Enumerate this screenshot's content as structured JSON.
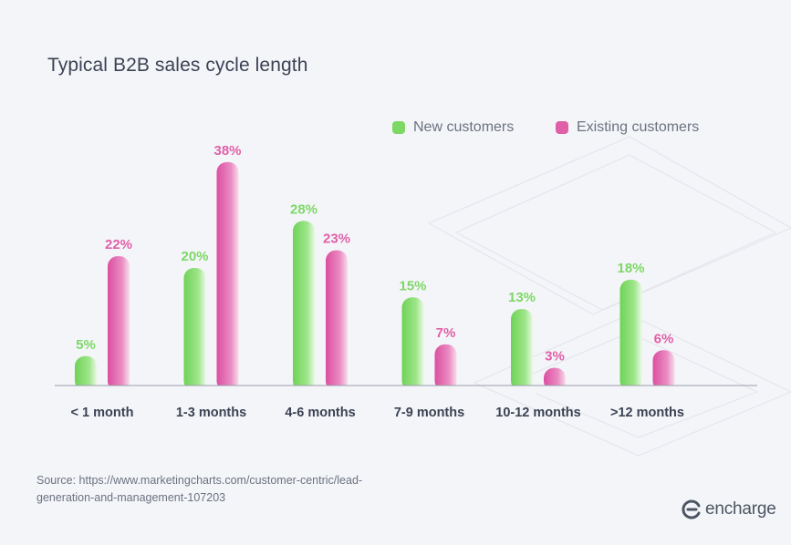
{
  "title": "Typical B2B sales cycle length",
  "colors": {
    "new": "#7dd866",
    "existing": "#e060a8",
    "axis": "#9aa0aa",
    "label": "#3b4253"
  },
  "legend": {
    "new_label": "New customers",
    "existing_label": "Existing customers"
  },
  "chart_data": {
    "type": "bar",
    "title": "Typical B2B sales cycle length",
    "categories": [
      "< 1 month",
      "1-3 months",
      "4-6 months",
      "7-9 months",
      "10-12 months",
      ">12 months"
    ],
    "series": [
      {
        "name": "New customers",
        "values": [
          5,
          20,
          28,
          15,
          13,
          18
        ]
      },
      {
        "name": "Existing customers",
        "values": [
          22,
          38,
          23,
          7,
          3,
          6
        ]
      }
    ],
    "value_suffix": "%",
    "xlabel": "",
    "ylabel": "",
    "ylim": [
      0,
      40
    ],
    "grid": false,
    "legend_position": "top-right"
  },
  "source": "Source: https://www.marketingcharts.com/customer-centric/lead-generation-and-management-107203",
  "brand": {
    "name": "encharge"
  }
}
